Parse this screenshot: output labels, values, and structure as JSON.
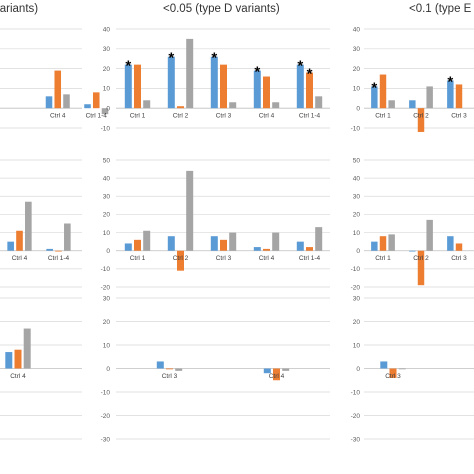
{
  "colors": {
    "blue": "#5b9bd5",
    "orange": "#ed7d31",
    "gray": "#a5a5a5"
  },
  "titles": {
    "left": "variants)",
    "middle": "<0.05 (type D variants)",
    "right": "<0.1 (type E v"
  },
  "star_symbol": "*",
  "chart_data": [
    {
      "id": "left-top",
      "type": "bar",
      "ylim": [
        -10,
        40
      ],
      "ticks": [],
      "categories": [
        "",
        "Ctrl 4",
        "Ctrl 1-4"
      ],
      "series": [
        {
          "values": [
            null,
            6,
            2
          ]
        },
        {
          "values": [
            null,
            19,
            8
          ]
        },
        {
          "values": [
            null,
            7,
            -3
          ]
        }
      ]
    },
    {
      "id": "left-mid",
      "type": "bar",
      "ylim": [
        -20,
        50
      ],
      "ticks": [],
      "categories": [
        "",
        "Ctrl 4",
        "Ctrl 1-4"
      ],
      "series": [
        {
          "values": [
            null,
            5,
            1
          ]
        },
        {
          "values": [
            null,
            11,
            0
          ]
        },
        {
          "values": [
            null,
            27,
            15
          ]
        }
      ]
    },
    {
      "id": "left-bot",
      "type": "bar",
      "ylim": [
        -30,
        30
      ],
      "ticks": [],
      "categories": [
        "Ctrl 4"
      ],
      "series": [
        {
          "values": [
            7
          ]
        },
        {
          "values": [
            8
          ]
        },
        {
          "values": [
            17
          ]
        }
      ]
    },
    {
      "id": "mid-top",
      "type": "bar",
      "ylim": [
        -10,
        40
      ],
      "ticks": [
        "-10",
        "0",
        "10",
        "20",
        "30",
        "40"
      ],
      "categories": [
        "Ctrl 1",
        "Ctrl 2",
        "Ctrl 3",
        "Ctrl 4",
        "Ctrl 1-4"
      ],
      "series": [
        {
          "values": [
            22,
            26,
            26,
            19,
            22
          ]
        },
        {
          "values": [
            22,
            1,
            22,
            16,
            18
          ]
        },
        {
          "values": [
            4,
            35,
            3,
            3,
            6
          ]
        }
      ],
      "annotations": [
        {
          "category": "Ctrl 1",
          "series": 0,
          "text": "*"
        },
        {
          "category": "Ctrl 2",
          "series": 0,
          "text": "*"
        },
        {
          "category": "Ctrl 3",
          "series": 0,
          "text": "*"
        },
        {
          "category": "Ctrl 4",
          "series": 0,
          "text": "*"
        },
        {
          "category": "Ctrl 1-4",
          "series": 0,
          "text": "*"
        },
        {
          "category": "Ctrl 1-4",
          "series": 1,
          "text": "*"
        }
      ]
    },
    {
      "id": "mid-mid",
      "type": "bar",
      "ylim": [
        -20,
        50
      ],
      "ticks": [
        "-20",
        "-10",
        "0",
        "10",
        "20",
        "30",
        "40",
        "50"
      ],
      "categories": [
        "Ctrl 1",
        "Ctrl 2",
        "Ctrl 3",
        "Ctrl 4",
        "Ctrl 1-4"
      ],
      "series": [
        {
          "values": [
            4,
            8,
            8,
            2,
            5
          ]
        },
        {
          "values": [
            6,
            -11,
            6,
            1,
            2
          ]
        },
        {
          "values": [
            11,
            44,
            10,
            10,
            13
          ]
        }
      ]
    },
    {
      "id": "mid-bot",
      "type": "bar",
      "ylim": [
        -30,
        30
      ],
      "ticks": [
        "-30",
        "-20",
        "-10",
        "0",
        "10",
        "20",
        "30"
      ],
      "categories": [
        "Ctrl 3",
        "Ctrl 4"
      ],
      "series": [
        {
          "values": [
            3,
            -2
          ]
        },
        {
          "values": [
            0,
            -5
          ]
        },
        {
          "values": [
            -1,
            -1
          ]
        }
      ]
    },
    {
      "id": "right-top",
      "type": "bar",
      "ylim": [
        -10,
        40
      ],
      "ticks": [
        "-10",
        "0",
        "10",
        "20",
        "30",
        "40"
      ],
      "categories": [
        "Ctrl 1",
        "Ctrl 2",
        "Ctrl 3"
      ],
      "series": [
        {
          "values": [
            11,
            4,
            14
          ]
        },
        {
          "values": [
            17,
            -12,
            12
          ]
        },
        {
          "values": [
            4,
            11,
            null
          ]
        }
      ],
      "annotations": [
        {
          "category": "Ctrl 1",
          "series": 0,
          "text": "*"
        },
        {
          "category": "Ctrl 3",
          "series": 0,
          "text": "*"
        }
      ]
    },
    {
      "id": "right-mid",
      "type": "bar",
      "ylim": [
        -20,
        50
      ],
      "ticks": [
        "-20",
        "-10",
        "0",
        "10",
        "20",
        "30",
        "40",
        "50"
      ],
      "categories": [
        "Ctrl 1",
        "Ctrl 2",
        "Ctrl 3"
      ],
      "series": [
        {
          "values": [
            5,
            0,
            8
          ]
        },
        {
          "values": [
            8,
            -19,
            4
          ]
        },
        {
          "values": [
            9,
            17,
            null
          ]
        }
      ]
    },
    {
      "id": "right-bot",
      "type": "bar",
      "ylim": [
        -30,
        30
      ],
      "ticks": [
        "-30",
        "-20",
        "-10",
        "0",
        "10",
        "20",
        "30"
      ],
      "categories": [
        "Ctrl 3"
      ],
      "series": [
        {
          "values": [
            3
          ]
        },
        {
          "values": [
            -4
          ]
        },
        {
          "values": [
            0
          ]
        }
      ]
    }
  ]
}
